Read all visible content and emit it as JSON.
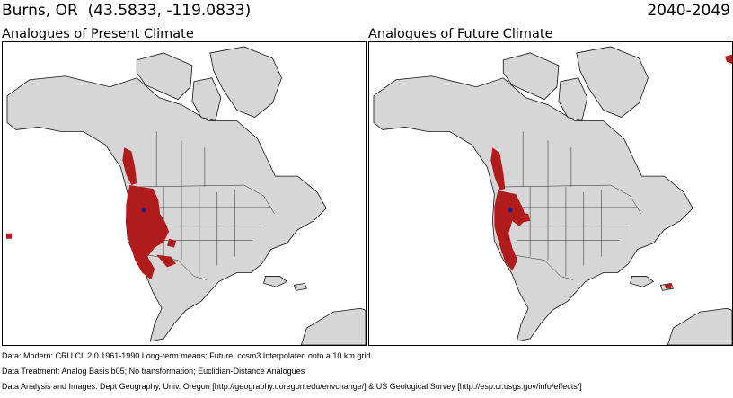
{
  "header": {
    "location": "Burns, OR",
    "coords": "(43.5833, -119.0833)",
    "period": "2040-2049"
  },
  "panels": [
    {
      "title": "Analogues of Present Climate"
    },
    {
      "title": "Analogues of Future Climate"
    }
  ],
  "colors": {
    "land": "#d6d6d6",
    "coastline": "#111111",
    "borders": "#222222",
    "analogue": "#b01c1c",
    "site_marker": "#1a1a8c",
    "background": "#ffffff"
  },
  "footer": {
    "line1": "Data:  Modern: CRU CL 2.0 1961-1990 Long-term means; Future: ccsm3 Interpolated onto a 10 km grid",
    "line2": "Data Treatment:  Analog Basis b05; No transformation; Euclidian-Distance Analogues",
    "line3": "Data Analysis and Images:  Dept Geography, Univ. Oregon [http://geography.uoregon.edu/envchange/] & US Geological Survey [http://esp.cr.usgs.gov/info/effects/]"
  }
}
